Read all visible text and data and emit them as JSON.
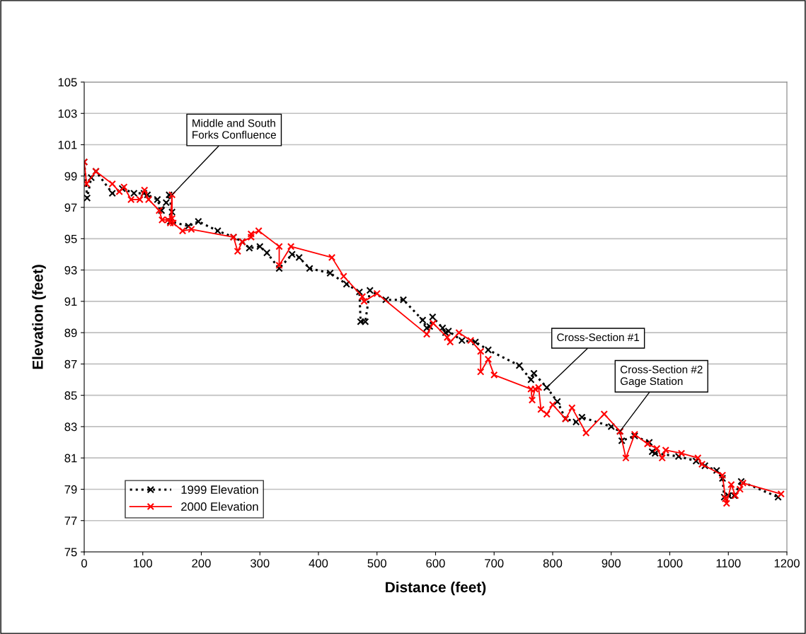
{
  "chart_data": {
    "type": "line",
    "xlabel": "Distance (feet)",
    "ylabel": "Elevation (feet)",
    "xlim": [
      0,
      1200
    ],
    "xticks": [
      0,
      100,
      200,
      300,
      400,
      500,
      600,
      700,
      800,
      900,
      1000,
      1100,
      1200
    ],
    "ylim": [
      75,
      105
    ],
    "yticks": [
      75,
      77,
      79,
      81,
      83,
      85,
      87,
      89,
      91,
      93,
      95,
      97,
      99,
      101,
      103,
      105
    ],
    "grid": "y",
    "legend": "bottom left",
    "marker": "cross",
    "series": [
      {
        "name": "1999 Elevation",
        "color": "#000000",
        "line_style": "dotted",
        "x": [
          0,
          5,
          12,
          20,
          48,
          65,
          85,
          102,
          108,
          125,
          132,
          140,
          145,
          150,
          147,
          178,
          195,
          228,
          255,
          270,
          282,
          300,
          312,
          333,
          355,
          367,
          385,
          420,
          448,
          470,
          472,
          480,
          488,
          515,
          545,
          578,
          585,
          590,
          595,
          612,
          617,
          622,
          645,
          668,
          690,
          743,
          763,
          768,
          790,
          808,
          822,
          840,
          850,
          900,
          915,
          918,
          940,
          965,
          970,
          975,
          1015,
          1045,
          1060,
          1080,
          1090,
          1093,
          1100,
          1110,
          1122,
          1185
        ],
        "values": [
          99.9,
          97.6,
          98.9,
          99.3,
          97.9,
          98.2,
          97.9,
          97.9,
          97.8,
          97.5,
          96.8,
          97.3,
          97.8,
          96.7,
          96.1,
          95.8,
          96.1,
          95.5,
          95.1,
          94.8,
          94.4,
          94.5,
          94.1,
          93.1,
          94.0,
          93.8,
          93.1,
          92.8,
          92.1,
          91.6,
          89.7,
          89.7,
          91.7,
          91.1,
          91.1,
          89.8,
          89.3,
          89.4,
          90.0,
          89.3,
          89.0,
          89.1,
          88.5,
          88.4,
          87.9,
          86.9,
          86.0,
          86.4,
          85.5,
          84.6,
          83.5,
          83.3,
          83.6,
          83.0,
          82.7,
          82.1,
          82.4,
          82.0,
          81.4,
          81.3,
          81.1,
          80.8,
          80.5,
          80.2,
          79.7,
          78.5,
          78.6,
          78.6,
          79.5,
          78.5
        ]
      },
      {
        "name": "2000 Elevation",
        "color": "#ff0000",
        "line_style": "solid",
        "x": [
          0,
          4,
          20,
          48,
          60,
          68,
          80,
          95,
          103,
          110,
          128,
          133,
          143,
          147,
          150,
          150,
          152,
          168,
          183,
          255,
          262,
          270,
          285,
          285,
          298,
          333,
          333,
          353,
          423,
          443,
          475,
          478,
          500,
          585,
          596,
          620,
          625,
          640,
          660,
          677,
          677,
          690,
          700,
          763,
          765,
          770,
          776,
          780,
          790,
          800,
          822,
          833,
          857,
          888,
          915,
          925,
          940,
          962,
          978,
          987,
          993,
          1020,
          1048,
          1055,
          1090,
          1095,
          1097,
          1105,
          1112,
          1120,
          1125,
          1190
        ],
        "values": [
          99.9,
          98.5,
          99.3,
          98.5,
          98.0,
          98.3,
          97.5,
          97.5,
          98.1,
          97.5,
          96.8,
          96.2,
          96.2,
          96.0,
          97.8,
          96.3,
          96.0,
          95.5,
          95.6,
          95.1,
          94.2,
          94.8,
          95.1,
          95.3,
          95.5,
          94.5,
          93.3,
          94.5,
          93.8,
          92.6,
          91.3,
          91.0,
          91.5,
          88.9,
          89.6,
          88.7,
          88.4,
          89.0,
          88.5,
          87.8,
          86.5,
          87.3,
          86.3,
          85.4,
          84.7,
          85.4,
          85.5,
          84.1,
          83.8,
          84.4,
          83.5,
          84.2,
          82.6,
          83.8,
          82.7,
          81.0,
          82.5,
          81.9,
          81.6,
          81.0,
          81.5,
          81.3,
          81.0,
          80.6,
          79.9,
          78.4,
          78.1,
          79.3,
          78.6,
          79.0,
          79.4,
          78.7
        ]
      }
    ],
    "annotations": [
      {
        "text": "Middle and South\nForks Confluence",
        "x": 150,
        "y": 97.8
      },
      {
        "text": "Cross-Section #1",
        "x": 790,
        "y": 85.5
      },
      {
        "text": "Cross-Section #2\nGage Station",
        "x": 915,
        "y": 82.7
      }
    ]
  }
}
